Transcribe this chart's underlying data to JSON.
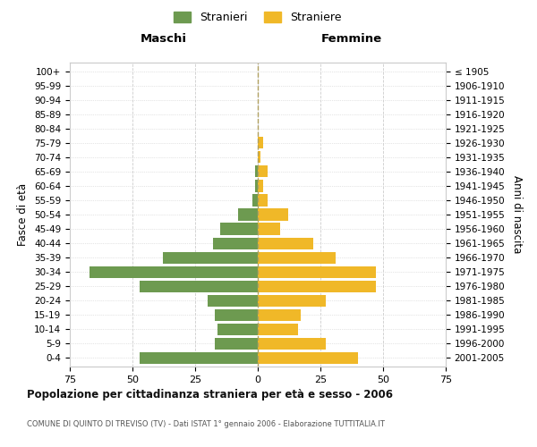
{
  "age_groups": [
    "0-4",
    "5-9",
    "10-14",
    "15-19",
    "20-24",
    "25-29",
    "30-34",
    "35-39",
    "40-44",
    "45-49",
    "50-54",
    "55-59",
    "60-64",
    "65-69",
    "70-74",
    "75-79",
    "80-84",
    "85-89",
    "90-94",
    "95-99",
    "100+"
  ],
  "birth_years": [
    "2001-2005",
    "1996-2000",
    "1991-1995",
    "1986-1990",
    "1981-1985",
    "1976-1980",
    "1971-1975",
    "1966-1970",
    "1961-1965",
    "1956-1960",
    "1951-1955",
    "1946-1950",
    "1941-1945",
    "1936-1940",
    "1931-1935",
    "1926-1930",
    "1921-1925",
    "1916-1920",
    "1911-1915",
    "1906-1910",
    "≤ 1905"
  ],
  "males": [
    47,
    17,
    16,
    17,
    20,
    47,
    67,
    38,
    18,
    15,
    8,
    2,
    1,
    1,
    0,
    0,
    0,
    0,
    0,
    0,
    0
  ],
  "females": [
    40,
    27,
    16,
    17,
    27,
    47,
    47,
    31,
    22,
    9,
    12,
    4,
    2,
    4,
    1,
    2,
    0,
    0,
    0,
    0,
    0
  ],
  "male_color": "#6d9a50",
  "female_color": "#f0b828",
  "male_label": "Stranieri",
  "female_label": "Straniere",
  "title": "Popolazione per cittadinanza straniera per età e sesso - 2006",
  "subtitle": "COMUNE DI QUINTO DI TREVISO (TV) - Dati ISTAT 1° gennaio 2006 - Elaborazione TUTTITALIA.IT",
  "header_left": "Maschi",
  "header_right": "Femmine",
  "ylabel_left": "Fasce di età",
  "ylabel_right": "Anni di nascita",
  "xlim": 75,
  "background_color": "#ffffff",
  "grid_color": "#cccccc",
  "bar_height": 0.82
}
